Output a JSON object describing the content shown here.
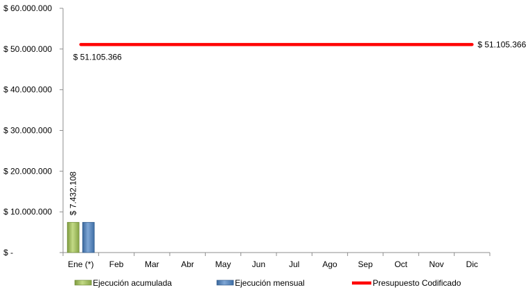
{
  "chart_data": {
    "type": "bar",
    "categories": [
      "Ene (*)",
      "Feb",
      "Mar",
      "Abr",
      "May",
      "Jun",
      "Jul",
      "Ago",
      "Sep",
      "Oct",
      "Nov",
      "Dic"
    ],
    "series": [
      {
        "name": "Ejecución acumulada",
        "type": "bar",
        "color": "#9BBB59",
        "values": [
          7432108,
          null,
          null,
          null,
          null,
          null,
          null,
          null,
          null,
          null,
          null,
          null
        ]
      },
      {
        "name": "Ejecución mensual",
        "type": "bar",
        "color": "#4F81BD",
        "values": [
          7432108,
          null,
          null,
          null,
          null,
          null,
          null,
          null,
          null,
          null,
          null,
          null
        ]
      },
      {
        "name": "Presupuesto Codificado",
        "type": "line",
        "color": "#FF0000",
        "values": [
          51105366,
          51105366,
          51105366,
          51105366,
          51105366,
          51105366,
          51105366,
          51105366,
          51105366,
          51105366,
          51105366,
          51105366
        ]
      }
    ],
    "y_ticks": [
      {
        "value": 60000000,
        "label": "$ 60.000.000"
      },
      {
        "value": 50000000,
        "label": "$ 50.000.000"
      },
      {
        "value": 40000000,
        "label": "$ 40.000.000"
      },
      {
        "value": 30000000,
        "label": "$ 30.000.000"
      },
      {
        "value": 20000000,
        "label": "$ 20.000.000"
      },
      {
        "value": 10000000,
        "label": "$ 10.000.000"
      },
      {
        "value": 0,
        "label": "$ -"
      }
    ],
    "data_labels": {
      "bar": "$ 7.432.108",
      "line_start": "$ 51.105.366",
      "line_end": "$ 51.105.366"
    },
    "ylim": [
      0,
      60000000
    ],
    "grid": false,
    "legend": "bottom",
    "title": "",
    "xlabel": "",
    "ylabel": ""
  }
}
